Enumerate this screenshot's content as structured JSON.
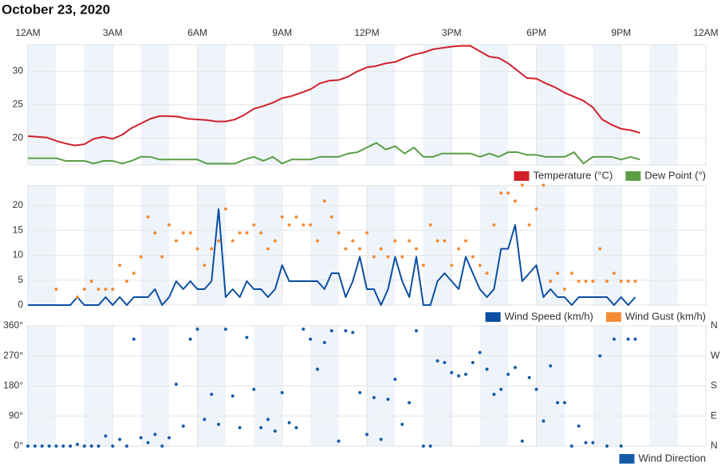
{
  "chart_data": [
    {
      "type": "line",
      "title": "October 23, 2020",
      "xlim": [
        0,
        1440
      ],
      "xticks": [
        {
          "value": 0,
          "label": "12AM"
        },
        {
          "value": 180,
          "label": "3AM"
        },
        {
          "value": 360,
          "label": "6AM"
        },
        {
          "value": 540,
          "label": "9AM"
        },
        {
          "value": 720,
          "label": "12PM"
        },
        {
          "value": 900,
          "label": "3PM"
        },
        {
          "value": 1080,
          "label": "6PM"
        },
        {
          "value": 1260,
          "label": "9PM"
        },
        {
          "value": 1440,
          "label": "12AM"
        }
      ],
      "ylim": [
        16,
        34
      ],
      "yticks": [
        20,
        25,
        30
      ],
      "grid": true,
      "legend": "lower right",
      "x": [
        0,
        20,
        40,
        60,
        80,
        100,
        120,
        140,
        160,
        180,
        200,
        220,
        240,
        260,
        280,
        300,
        320,
        340,
        360,
        380,
        400,
        420,
        440,
        460,
        480,
        500,
        520,
        540,
        560,
        580,
        600,
        620,
        640,
        660,
        680,
        700,
        720,
        740,
        760,
        780,
        800,
        820,
        840,
        860,
        880,
        900,
        920,
        940,
        960,
        980,
        1000,
        1020,
        1040,
        1060,
        1080,
        1100,
        1120,
        1140,
        1160,
        1180,
        1200,
        1220,
        1240,
        1260,
        1280,
        1300
      ],
      "series": [
        {
          "name": "Temperature (°C)",
          "color": "#d0202a",
          "values": [
            20.3,
            20.2,
            20.1,
            19.6,
            19.2,
            18.9,
            19.1,
            19.9,
            20.2,
            19.9,
            20.5,
            21.5,
            22.2,
            22.9,
            23.3,
            23.3,
            23.2,
            22.9,
            22.8,
            22.7,
            22.5,
            22.5,
            22.8,
            23.5,
            24.4,
            24.8,
            25.3,
            26.0,
            26.3,
            26.8,
            27.3,
            28.2,
            28.6,
            28.7,
            29.2,
            30.0,
            30.6,
            30.8,
            31.2,
            31.4,
            32.0,
            32.5,
            32.8,
            33.3,
            33.5,
            33.7,
            33.8,
            33.8,
            33.0,
            32.2,
            32.0,
            31.2,
            30.1,
            29.0,
            28.9,
            28.2,
            27.6,
            26.8,
            26.2,
            25.6,
            24.6,
            22.8,
            22.0,
            21.4,
            21.2,
            20.8
          ]
        },
        {
          "name": "Dew Point (°)",
          "color": "#5a9e46",
          "values": [
            17,
            17,
            17,
            17,
            16.6,
            16.6,
            16.6,
            16.2,
            16.6,
            16.6,
            16.2,
            16.6,
            17.2,
            17.2,
            16.8,
            16.8,
            16.8,
            16.8,
            16.8,
            16.2,
            16.2,
            16.2,
            16.2,
            16.8,
            17.2,
            16.6,
            17.2,
            16.2,
            16.8,
            16.8,
            16.8,
            17.2,
            17.2,
            17.2,
            17.7,
            17.9,
            18.6,
            19.3,
            18.3,
            18.8,
            17.7,
            18.6,
            17.2,
            17.2,
            17.7,
            17.7,
            17.7,
            17.7,
            17.2,
            17.7,
            17.2,
            17.9,
            17.9,
            17.5,
            17.5,
            17.2,
            17.2,
            17.2,
            17.9,
            16.2,
            17.2,
            17.2,
            17.2,
            16.8,
            17.2,
            16.8
          ]
        }
      ]
    },
    {
      "type": "line",
      "ylim": [
        0,
        24
      ],
      "yticks": [
        0,
        5,
        10,
        15,
        20
      ],
      "grid": true,
      "legend": "lower right",
      "x": [
        0,
        15,
        30,
        45,
        60,
        75,
        90,
        105,
        120,
        135,
        150,
        165,
        180,
        195,
        210,
        225,
        240,
        255,
        270,
        285,
        300,
        315,
        330,
        345,
        360,
        375,
        390,
        405,
        420,
        435,
        450,
        465,
        480,
        495,
        510,
        525,
        540,
        555,
        570,
        585,
        600,
        615,
        630,
        645,
        660,
        675,
        690,
        705,
        720,
        735,
        750,
        765,
        780,
        795,
        810,
        825,
        840,
        855,
        870,
        885,
        900,
        915,
        930,
        945,
        960,
        975,
        990,
        1005,
        1020,
        1035,
        1050,
        1065,
        1080,
        1095,
        1110,
        1125,
        1140,
        1155,
        1170,
        1185,
        1200,
        1215,
        1230,
        1245,
        1260,
        1275,
        1290
      ],
      "series": [
        {
          "name": "Wind Speed (km/h)",
          "color": "#0b4ea2",
          "values": [
            0,
            0,
            0,
            0,
            0,
            0,
            0,
            1.6,
            0,
            0,
            0,
            1.6,
            0,
            1.6,
            0,
            1.6,
            1.6,
            1.6,
            3.2,
            0,
            1.6,
            4.8,
            3.2,
            4.8,
            3.2,
            3.2,
            4.8,
            19.3,
            1.6,
            3.2,
            1.6,
            4.8,
            3.2,
            3.2,
            1.6,
            3.2,
            8,
            4.8,
            4.8,
            4.8,
            4.8,
            4.8,
            3.2,
            6.4,
            6.4,
            1.6,
            4.8,
            9.7,
            3.2,
            3.2,
            0,
            3.2,
            9.7,
            4.8,
            1.6,
            9.7,
            0,
            0,
            4.8,
            6.4,
            4.8,
            3.2,
            9.7,
            6.4,
            3.2,
            1.6,
            3.2,
            11.3,
            11.3,
            16.1,
            4.8,
            6.4,
            8,
            1.6,
            3.2,
            1.6,
            1.6,
            0,
            1.6,
            1.6,
            1.6,
            1.6,
            1.6,
            0,
            1.6,
            0,
            1.6
          ]
        },
        {
          "name": "Wind Gust (km/h)",
          "color": "#f58b34",
          "type": "scatter",
          "values": [
            null,
            null,
            null,
            null,
            3.2,
            null,
            null,
            1.6,
            3.2,
            4.8,
            3.2,
            3.2,
            3.2,
            8,
            4.8,
            6.4,
            9.7,
            17.7,
            14.5,
            9.7,
            16.1,
            12.9,
            14.5,
            14.5,
            11.3,
            8,
            11.3,
            12.9,
            19.3,
            12.9,
            14.5,
            14.5,
            16.1,
            14.5,
            11.3,
            12.9,
            17.7,
            16.1,
            17.7,
            16.1,
            16.1,
            12.9,
            20.9,
            17.7,
            14.5,
            11.3,
            12.9,
            11.3,
            14.5,
            9.7,
            11.3,
            9.7,
            12.9,
            9.7,
            12.9,
            11.3,
            8,
            16.1,
            12.9,
            12.9,
            8,
            11.3,
            12.9,
            9.7,
            8,
            6.4,
            16.1,
            22.5,
            22.5,
            20.9,
            24.1,
            16.1,
            19.3,
            24.1,
            4.8,
            6.4,
            3.2,
            6.4,
            4.8,
            4.8,
            4.8,
            11.3,
            4.8,
            6.4,
            4.8,
            4.8,
            4.8
          ]
        }
      ]
    },
    {
      "type": "scatter",
      "ylim": [
        0,
        360
      ],
      "legend": "lower right",
      "yticks": [
        {
          "value": 0,
          "label": "0°"
        },
        {
          "value": 90,
          "label": "90°"
        },
        {
          "value": 180,
          "label": "180°"
        },
        {
          "value": 270,
          "label": "270°"
        },
        {
          "value": 360,
          "label": "360°"
        }
      ],
      "y2lim": [
        0,
        360
      ],
      "y2ticks": [
        {
          "value": 0,
          "label": "N"
        },
        {
          "value": 90,
          "label": "E"
        },
        {
          "value": 180,
          "label": "S"
        },
        {
          "value": 270,
          "label": "W"
        },
        {
          "value": 360,
          "label": "N"
        }
      ],
      "grid": true,
      "x": [
        0,
        15,
        30,
        45,
        60,
        75,
        90,
        105,
        120,
        135,
        150,
        165,
        180,
        195,
        210,
        225,
        240,
        255,
        270,
        285,
        300,
        315,
        330,
        345,
        360,
        375,
        390,
        405,
        420,
        435,
        450,
        465,
        480,
        495,
        510,
        525,
        540,
        555,
        570,
        585,
        600,
        615,
        630,
        645,
        660,
        675,
        690,
        705,
        720,
        735,
        750,
        765,
        780,
        795,
        810,
        825,
        840,
        855,
        870,
        885,
        900,
        915,
        930,
        945,
        960,
        975,
        990,
        1005,
        1020,
        1035,
        1050,
        1065,
        1080,
        1095,
        1110,
        1125,
        1140,
        1155,
        1170,
        1185,
        1200,
        1215,
        1230,
        1245,
        1260,
        1275,
        1290
      ],
      "series": [
        {
          "name": "Wind Direction",
          "color": "#155ca8",
          "values": [
            0,
            0,
            0,
            0,
            0,
            0,
            0,
            5,
            0,
            0,
            0,
            30,
            0,
            20,
            0,
            320,
            25,
            10,
            35,
            0,
            25,
            185,
            60,
            320,
            350,
            80,
            155,
            65,
            350,
            150,
            55,
            325,
            170,
            55,
            80,
            45,
            160,
            70,
            55,
            350,
            320,
            230,
            310,
            345,
            15,
            345,
            340,
            160,
            35,
            145,
            20,
            140,
            200,
            65,
            130,
            345,
            0,
            0,
            255,
            250,
            220,
            210,
            215,
            250,
            280,
            230,
            155,
            170,
            215,
            235,
            15,
            205,
            170,
            75,
            240,
            130,
            130,
            0,
            60,
            10,
            10,
            270,
            0,
            320,
            0,
            320,
            320
          ]
        }
      ]
    }
  ]
}
